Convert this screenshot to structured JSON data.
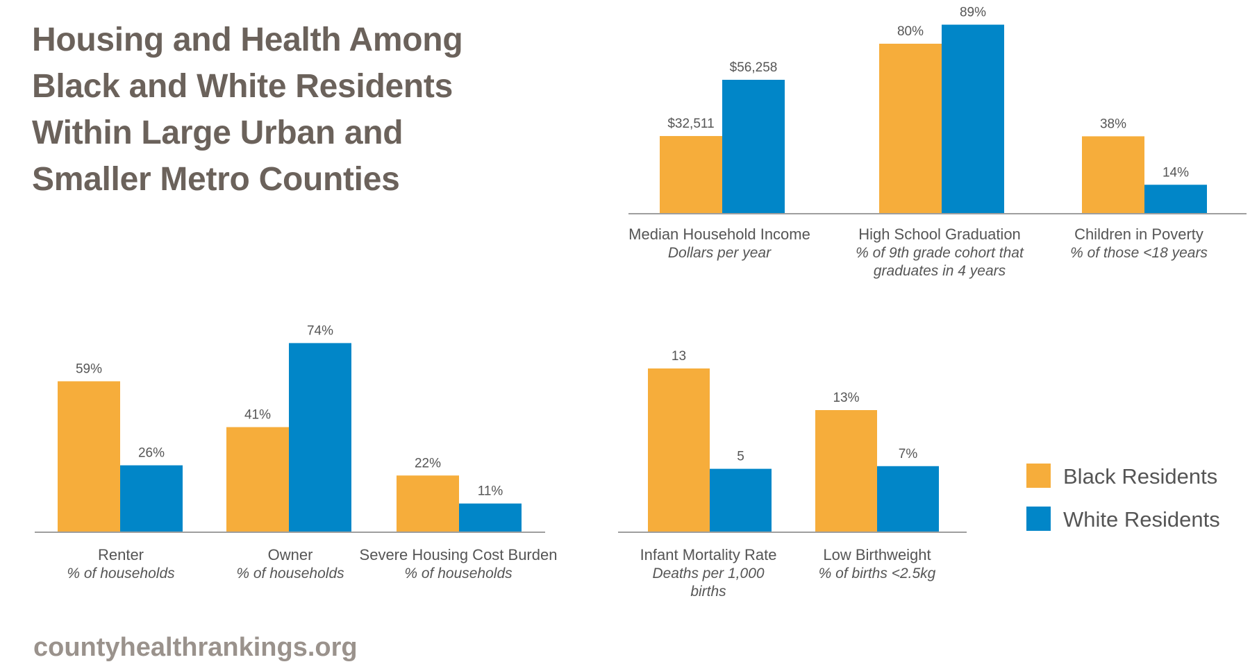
{
  "title": "Housing and Health Among\nBlack and White Residents\nWithin Large Urban and\nSmaller Metro Counties",
  "source": "countyhealthrankings.org",
  "colors": {
    "black": "#f6ad3b",
    "white": "#0186c8",
    "axis": "#9e9e9e"
  },
  "legend": [
    {
      "label": "Black Residents",
      "color": "#f6ad3b"
    },
    {
      "label": "White Residents",
      "color": "#0186c8"
    }
  ],
  "chart_data": [
    {
      "type": "bar",
      "panel": "top-right",
      "categories": [
        "Median Household Income",
        "High School Graduation",
        "Children in Poverty"
      ],
      "subtitles": [
        [
          "Dollars per year"
        ],
        [
          "% of 9th grade cohort that",
          "graduates in 4 years"
        ],
        [
          "% of those <18 years"
        ]
      ],
      "series": [
        {
          "name": "Black Residents",
          "values": [
            32511,
            80,
            38
          ],
          "labels": [
            "$32,511",
            "80%",
            "38%"
          ]
        },
        {
          "name": "White Residents",
          "values": [
            56258,
            89,
            14
          ],
          "labels": [
            "$56,258",
            "89%",
            "14%"
          ]
        }
      ]
    },
    {
      "type": "bar",
      "panel": "bottom-left",
      "categories": [
        "Renter",
        "Owner",
        "Severe Housing Cost Burden"
      ],
      "subtitles": [
        [
          "% of households"
        ],
        [
          "% of households"
        ],
        [
          "% of households"
        ]
      ],
      "series": [
        {
          "name": "Black Residents",
          "values": [
            59,
            41,
            22
          ],
          "labels": [
            "59%",
            "41%",
            "22%"
          ]
        },
        {
          "name": "White Residents",
          "values": [
            26,
            74,
            11
          ],
          "labels": [
            "26%",
            "74%",
            "11%"
          ]
        }
      ]
    },
    {
      "type": "bar",
      "panel": "bottom-middle",
      "categories": [
        "Infant Mortality Rate",
        "Low Birthweight"
      ],
      "subtitles": [
        [
          "Deaths per 1,000",
          "births"
        ],
        [
          "% of births <2.5kg"
        ]
      ],
      "series": [
        {
          "name": "Black Residents",
          "values": [
            13,
            13
          ],
          "labels": [
            "13",
            "13%"
          ]
        },
        {
          "name": "White Residents",
          "values": [
            5,
            7
          ],
          "labels": [
            "5",
            "7%"
          ]
        }
      ]
    }
  ]
}
